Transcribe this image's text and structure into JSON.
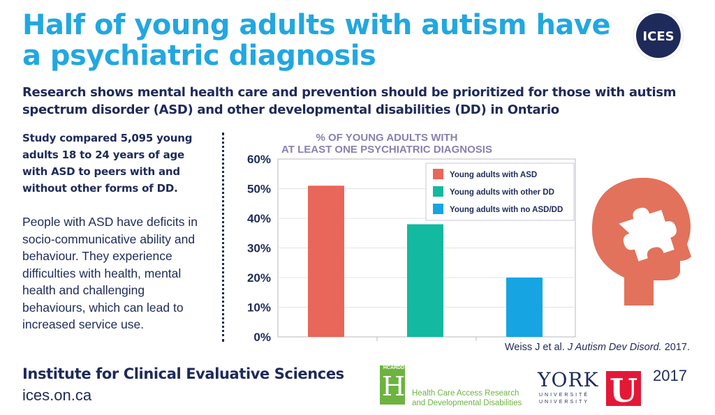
{
  "title": "Half of young adults with autism have a psychiatric diagnosis",
  "subtitle": "Research shows mental health care and prevention should be prioritized for those with autism spectrum disorder (ASD) and other developmental disabilities (DD) in Ontario",
  "logo": {
    "text": "ICES",
    "color": "#1e2a5a"
  },
  "study_text": "Study compared 5,095 young adults 18 to 24 years of age with ASD to peers with and without other forms of DD.",
  "description": "People with ASD have deficits in socio-communicative ability and behaviour. They experience difficulties with health, mental health and challenging behaviours, which can lead to increased service use.",
  "chart_data": {
    "type": "bar",
    "title_line1": "% OF YOUNG ADULTS WITH",
    "title_line2": "AT LEAST ONE PSYCHIATRIC DIAGNOSIS",
    "categories": [
      "Young adults with ASD",
      "Young adults with other DD",
      "Young adults with no ASD/DD"
    ],
    "values": [
      51,
      38,
      20
    ],
    "colors": [
      "#e8665a",
      "#13b9a0",
      "#17a4e3"
    ],
    "yticks": [
      "0%",
      "10%",
      "20%",
      "30%",
      "40%",
      "50%",
      "60%"
    ],
    "ylim": [
      0,
      60
    ],
    "legend_position": "top-right",
    "title_color": "#8a7fb0"
  },
  "citation": {
    "prefix": "Weiss J et al. ",
    "journal": "J Autism Dev Disord.",
    "year": " 2017."
  },
  "footer": {
    "org": "Institute for Clinical Evaluative Sciences",
    "url": "ices.on.ca",
    "year": "2017"
  },
  "hcardd": {
    "tag": "HCARDD",
    "letter": "H",
    "line1": "Health Care Access Research",
    "line2": "and Developmental Disabilities"
  },
  "york": {
    "word": "YORK",
    "sub1": "UNIVERSITÉ",
    "sub2": "UNIVERSITY",
    "u": "U"
  },
  "illustration": {
    "icon": "head-puzzle-icon",
    "color": "#e2725b"
  }
}
